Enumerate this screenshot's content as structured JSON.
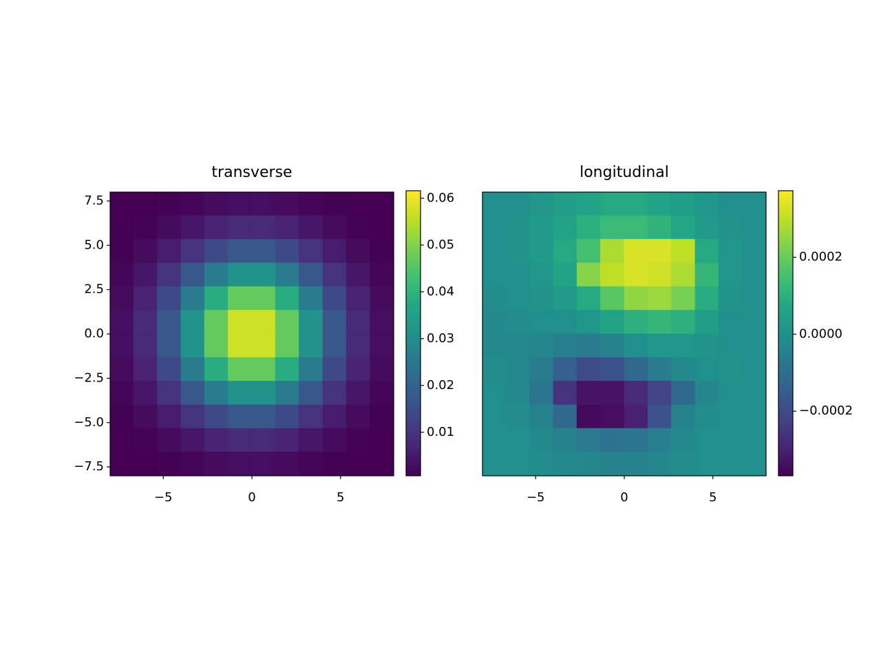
{
  "chart_data": [
    {
      "type": "heatmap",
      "title": "transverse",
      "cmap": "viridis",
      "x": [
        -7.33,
        -6,
        -4.67,
        -3.33,
        -2,
        -0.67,
        0.67,
        2,
        3.33,
        4.67,
        6,
        7.33
      ],
      "y": [
        7.33,
        6,
        4.67,
        3.33,
        2,
        0.67,
        -0.67,
        -2,
        -3.33,
        -4.67,
        -6,
        -7.33
      ],
      "values": [
        [
          0.0002,
          0.0004,
          0.0009,
          0.0016,
          0.0024,
          0.0029,
          0.0029,
          0.0024,
          0.0016,
          0.0009,
          0.0004,
          0.0002
        ],
        [
          0.0004,
          0.0011,
          0.0024,
          0.0044,
          0.0065,
          0.0079,
          0.0079,
          0.0065,
          0.0044,
          0.0024,
          0.0011,
          0.0004
        ],
        [
          0.0009,
          0.0024,
          0.0053,
          0.0097,
          0.0143,
          0.0174,
          0.0174,
          0.0143,
          0.0097,
          0.0053,
          0.0024,
          0.0009
        ],
        [
          0.0016,
          0.0044,
          0.0097,
          0.0175,
          0.026,
          0.0316,
          0.0316,
          0.026,
          0.0175,
          0.0097,
          0.0044,
          0.0016
        ],
        [
          0.0024,
          0.0065,
          0.0143,
          0.026,
          0.0385,
          0.0469,
          0.0469,
          0.0385,
          0.026,
          0.0143,
          0.0065,
          0.0024
        ],
        [
          0.0029,
          0.0079,
          0.0174,
          0.0316,
          0.0469,
          0.057,
          0.057,
          0.0469,
          0.0316,
          0.0174,
          0.0079,
          0.0029
        ],
        [
          0.0029,
          0.0079,
          0.0174,
          0.0316,
          0.0469,
          0.057,
          0.057,
          0.0469,
          0.0316,
          0.0174,
          0.0079,
          0.0029
        ],
        [
          0.0024,
          0.0065,
          0.0143,
          0.026,
          0.0385,
          0.0469,
          0.0469,
          0.0385,
          0.026,
          0.0143,
          0.0065,
          0.0024
        ],
        [
          0.0016,
          0.0044,
          0.0097,
          0.0175,
          0.026,
          0.0316,
          0.0316,
          0.026,
          0.0175,
          0.0097,
          0.0044,
          0.0016
        ],
        [
          0.0009,
          0.0024,
          0.0053,
          0.0097,
          0.0143,
          0.0174,
          0.0174,
          0.0143,
          0.0097,
          0.0053,
          0.0024,
          0.0009
        ],
        [
          0.0004,
          0.0011,
          0.0024,
          0.0044,
          0.0065,
          0.0079,
          0.0079,
          0.0065,
          0.0044,
          0.0024,
          0.0011,
          0.0004
        ],
        [
          0.0002,
          0.0004,
          0.0009,
          0.0016,
          0.0024,
          0.0029,
          0.0029,
          0.0024,
          0.0016,
          0.0009,
          0.0004,
          0.0002
        ]
      ],
      "xlim": [
        -8,
        8
      ],
      "ylim": [
        -8,
        8
      ],
      "xticks": [
        {
          "value": -5,
          "label": "−5"
        },
        0,
        5
      ],
      "yticks": [
        {
          "value": 7.5,
          "label": "7.5"
        },
        {
          "value": 5,
          "label": "5.0"
        },
        {
          "value": 2.5,
          "label": "2.5"
        },
        {
          "value": 0,
          "label": "0.0"
        },
        {
          "value": -2.5,
          "label": "−2.5"
        },
        {
          "value": -5,
          "label": "−5.0"
        },
        {
          "value": -7.5,
          "label": "−7.5"
        }
      ],
      "colorbar_lim": [
        0.0007,
        0.0616
      ],
      "colorbar_ticks": [
        0.01,
        0.02,
        0.03,
        0.04,
        0.05,
        0.06
      ]
    },
    {
      "type": "heatmap",
      "title": "longitudinal",
      "cmap": "viridis",
      "x": [
        -7.33,
        -6,
        -4.67,
        -3.33,
        -2,
        -0.67,
        0.67,
        2,
        3.33,
        4.67,
        6,
        7.33
      ],
      "y": [
        7.33,
        6,
        4.67,
        3.33,
        2,
        0.67,
        -0.67,
        -2,
        -3.33,
        -4.67,
        -6,
        -7.33
      ],
      "values": [
        [
          0,
          0,
          2e-05,
          4e-05,
          6e-05,
          8e-05,
          8e-05,
          6e-05,
          4e-05,
          2e-05,
          0,
          0
        ],
        [
          0,
          1e-05,
          3e-05,
          6e-05,
          0.0001,
          0.00013,
          0.00013,
          0.00011,
          7e-05,
          3e-05,
          1e-05,
          0
        ],
        [
          0,
          1e-05,
          3e-05,
          8e-05,
          0.00015,
          0.00028,
          0.00033,
          0.00033,
          0.0003,
          8e-05,
          2e-05,
          0
        ],
        [
          0,
          0,
          2e-05,
          6e-05,
          0.00024,
          0.0003,
          0.00033,
          0.00032,
          0.00028,
          0.00012,
          2e-05,
          0
        ],
        [
          -1e-05,
          0,
          1e-05,
          3e-05,
          8e-05,
          0.00018,
          0.00025,
          0.00026,
          0.00022,
          9e-05,
          1e-05,
          0
        ],
        [
          -2e-05,
          -1e-05,
          0,
          0,
          2e-05,
          6e-05,
          0.0001,
          0.00012,
          0.0001,
          4e-05,
          0,
          0
        ],
        [
          -2e-05,
          -2e-05,
          -3e-05,
          -5e-05,
          -6e-05,
          -4e-05,
          0,
          2e-05,
          2e-05,
          1e-05,
          0,
          0
        ],
        [
          -1e-05,
          -2e-05,
          -6e-05,
          -0.00014,
          -0.0002,
          -0.00018,
          -0.00012,
          -6e-05,
          -2e-05,
          0,
          1e-05,
          0
        ],
        [
          0,
          -2e-05,
          -8e-05,
          -0.00026,
          -0.00033,
          -0.00033,
          -0.00028,
          -0.00022,
          -0.00012,
          -3e-05,
          0,
          0
        ],
        [
          0,
          -1e-05,
          -4e-05,
          -0.00012,
          -0.00035,
          -0.00034,
          -0.0003,
          -0.00018,
          -4e-05,
          -1e-05,
          0,
          0
        ],
        [
          0,
          0,
          -2e-05,
          -4e-05,
          -7e-05,
          -9e-05,
          -8e-05,
          -5e-05,
          -2e-05,
          0,
          0,
          0
        ],
        [
          0,
          0,
          -1e-05,
          -2e-05,
          -3e-05,
          -4e-05,
          -4e-05,
          -3e-05,
          -1e-05,
          0,
          0,
          0
        ]
      ],
      "xlim": [
        -8,
        8
      ],
      "ylim": [
        -8,
        8
      ],
      "xticks": [
        {
          "value": -5,
          "label": "−5"
        },
        0,
        5
      ],
      "colorbar_lim": [
        -0.000368,
        0.000373
      ],
      "colorbar_ticks": [
        {
          "value": 0.0002,
          "label": "0.0002"
        },
        {
          "value": 0,
          "label": "0.0000"
        },
        {
          "value": -0.0002,
          "label": "−0.0002"
        }
      ]
    }
  ]
}
